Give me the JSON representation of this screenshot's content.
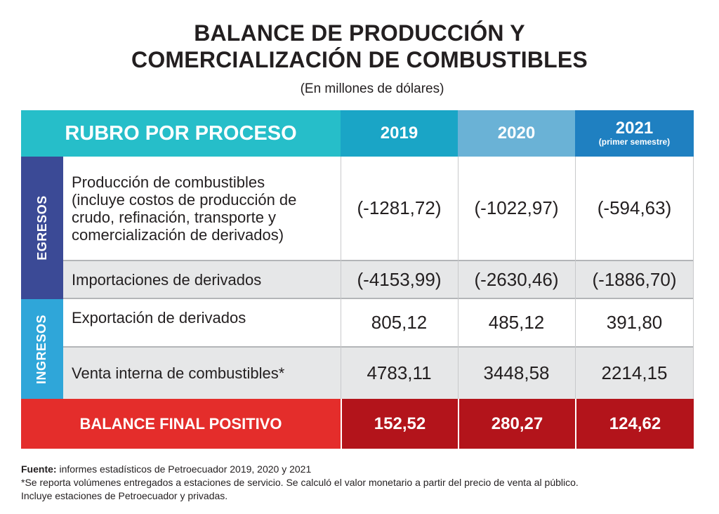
{
  "title": {
    "line1": "BALANCE DE PRODUCCIÓN Y",
    "line2": "COMERCIALIZACIÓN DE COMBUSTIBLES"
  },
  "subtitle": "(En millones de dólares)",
  "table": {
    "header": {
      "rubro": "RUBRO POR PROCESO",
      "years": [
        {
          "label": "2019"
        },
        {
          "label": "2020"
        },
        {
          "label": "2021",
          "sub": "(primer semestre)"
        }
      ]
    },
    "groups": {
      "egresos": "EGRESOS",
      "ingresos": "INGRESOS"
    },
    "rows": [
      {
        "label": "Producción de combustibles (incluye costos de producción de crudo, refinación, transporte y comercialización de derivados)",
        "values": [
          "(-1281,72)",
          "(-1022,97)",
          "(-594,63)"
        ]
      },
      {
        "label": "Importaciones de derivados",
        "values": [
          "(-4153,99)",
          "(-2630,46)",
          "(-1886,70)"
        ]
      },
      {
        "label": "Exportación de derivados",
        "values": [
          "805,12",
          "485,12",
          "391,80"
        ]
      },
      {
        "label": "Venta interna de combustibles*",
        "values": [
          "4783,11",
          "3448,58",
          "2214,15"
        ]
      }
    ],
    "total": {
      "label": "BALANCE FINAL POSITIVO",
      "values": [
        "152,52",
        "280,27",
        "124,62"
      ]
    }
  },
  "notes": {
    "source_label": "Fuente:",
    "source_text": " informes estadísticos de Petroecuador 2019, 2020 y 2021",
    "line2": "*Se reporta volúmenes entregados a estaciones de servicio. Se calculó el valor monetario a partir del precio de venta al público.",
    "line3": "Incluye estaciones de Petroecuador y privadas."
  },
  "colors": {
    "header_rubro": "#26bec9",
    "header_2019": "#1aa5c6",
    "header_2020": "#6ab2d6",
    "header_2021": "#1f80c1",
    "egresos": "#3b4a96",
    "ingresos": "#2fa6d9",
    "total_label": "#e42d2b",
    "total_values": "#b3141b"
  }
}
